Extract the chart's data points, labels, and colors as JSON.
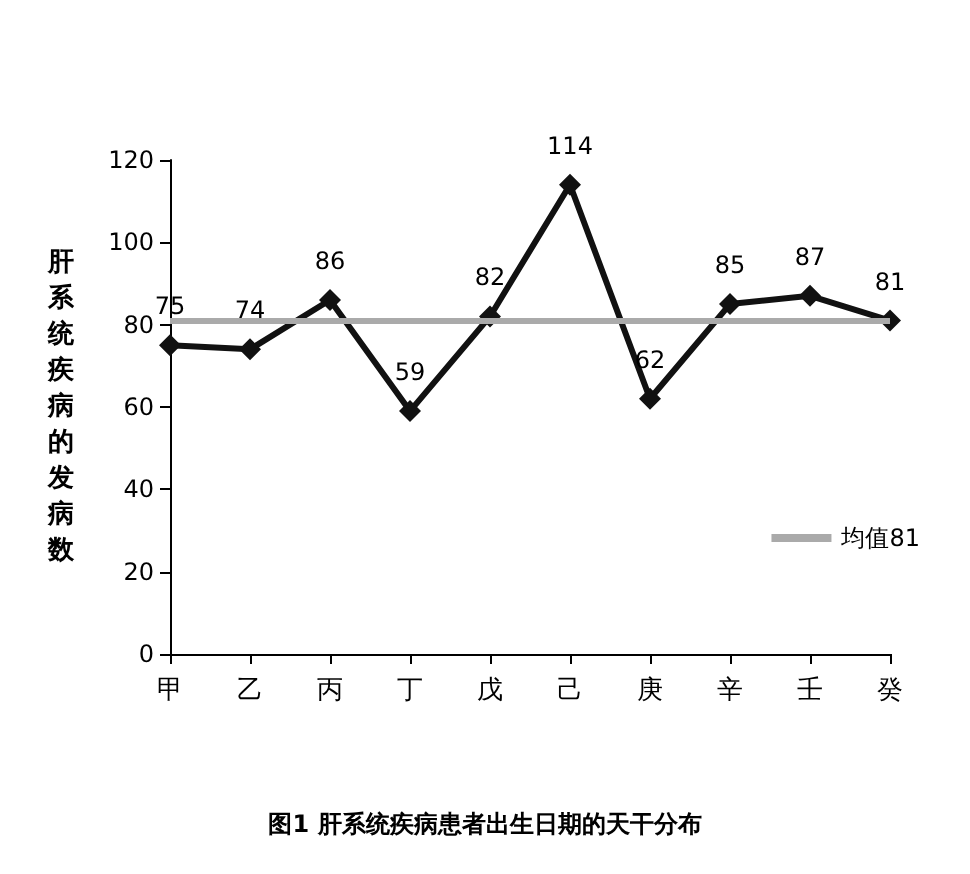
{
  "chart_data": {
    "type": "line",
    "title": "图1 肝系统疾病患者出生日期的天干分布",
    "ylabel": "肝系统疾病的发病数",
    "categories": [
      "甲",
      "乙",
      "丙",
      "丁",
      "戊",
      "己",
      "庚",
      "辛",
      "壬",
      "癸"
    ],
    "series": [
      {
        "color": "#111111",
        "values": [
          75,
          74,
          86,
          59,
          82,
          114,
          62,
          85,
          87,
          81
        ]
      }
    ],
    "ylim": [
      0,
      120
    ],
    "yticks": [
      0,
      20,
      40,
      60,
      80,
      100,
      120
    ],
    "ref_lines": [
      {
        "axis": "y",
        "value": 81,
        "label": "均值81",
        "color": "#aaaaaa"
      }
    ],
    "data_labels": true,
    "grid": false,
    "legend": "right",
    "marker": "diamond",
    "line_style": "solid"
  }
}
